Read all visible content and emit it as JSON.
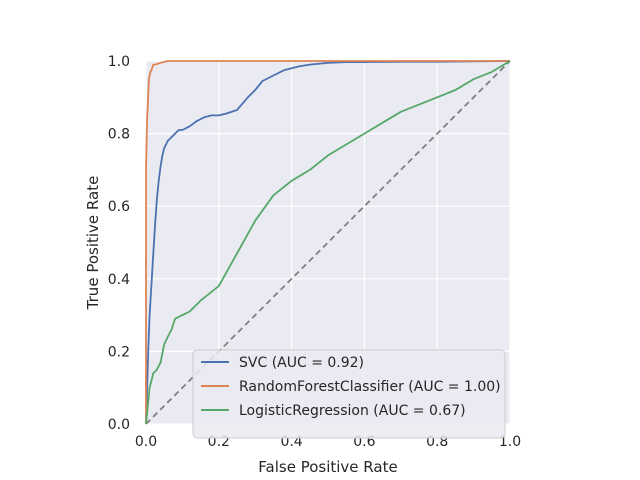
{
  "chart_data": {
    "type": "line",
    "title": "",
    "xlabel": "False Positive Rate",
    "ylabel": "True Positive Rate",
    "xlim": [
      0.0,
      1.0
    ],
    "ylim": [
      0.0,
      1.0
    ],
    "xticks": [
      "0.0",
      "0.2",
      "0.4",
      "0.6",
      "0.8",
      "1.0"
    ],
    "yticks": [
      "0.0",
      "0.2",
      "0.4",
      "0.6",
      "0.8",
      "1.0"
    ],
    "grid": true,
    "legend_position": "lower-right",
    "background_color": "#eaeaf2",
    "series": [
      {
        "name": "SVC (AUC = 0.92)",
        "color": "#4c72b0",
        "x": [
          0.0,
          0.003,
          0.006,
          0.008,
          0.01,
          0.013,
          0.016,
          0.02,
          0.025,
          0.03,
          0.035,
          0.04,
          0.045,
          0.05,
          0.06,
          0.07,
          0.08,
          0.09,
          0.1,
          0.12,
          0.14,
          0.16,
          0.18,
          0.2,
          0.22,
          0.25,
          0.28,
          0.3,
          0.32,
          0.35,
          0.38,
          0.4,
          0.42,
          0.45,
          0.5,
          0.55,
          0.6,
          0.7,
          0.8,
          0.9,
          1.0
        ],
        "y": [
          0.0,
          0.1,
          0.2,
          0.25,
          0.3,
          0.35,
          0.4,
          0.47,
          0.55,
          0.62,
          0.67,
          0.71,
          0.74,
          0.76,
          0.78,
          0.79,
          0.8,
          0.81,
          0.81,
          0.82,
          0.835,
          0.845,
          0.85,
          0.85,
          0.855,
          0.865,
          0.9,
          0.92,
          0.945,
          0.96,
          0.975,
          0.98,
          0.985,
          0.99,
          0.995,
          0.997,
          0.997,
          0.998,
          0.998,
          0.999,
          1.0
        ]
      },
      {
        "name": "RandomForestClassifier (AUC = 1.00)",
        "color": "#dd8452",
        "x": [
          0.0,
          0.0,
          0.003,
          0.005,
          0.008,
          0.012,
          0.015,
          0.02,
          0.025,
          0.04,
          0.06,
          0.2,
          1.0
        ],
        "y": [
          0.0,
          0.7,
          0.84,
          0.88,
          0.95,
          0.97,
          0.975,
          0.99,
          0.99,
          0.995,
          1.0,
          1.0,
          1.0
        ]
      },
      {
        "name": "LogisticRegression (AUC = 0.67)",
        "color": "#55a868",
        "x": [
          0.0,
          0.005,
          0.01,
          0.015,
          0.02,
          0.03,
          0.04,
          0.05,
          0.06,
          0.07,
          0.08,
          0.1,
          0.12,
          0.15,
          0.2,
          0.25,
          0.3,
          0.35,
          0.4,
          0.45,
          0.5,
          0.55,
          0.6,
          0.65,
          0.7,
          0.75,
          0.8,
          0.85,
          0.9,
          0.95,
          1.0
        ],
        "y": [
          0.0,
          0.05,
          0.1,
          0.12,
          0.14,
          0.15,
          0.17,
          0.22,
          0.24,
          0.26,
          0.29,
          0.3,
          0.31,
          0.34,
          0.38,
          0.47,
          0.56,
          0.63,
          0.67,
          0.7,
          0.74,
          0.77,
          0.8,
          0.83,
          0.86,
          0.88,
          0.9,
          0.92,
          0.95,
          0.97,
          1.0
        ]
      }
    ],
    "reference_line": {
      "x": [
        0.0,
        1.0
      ],
      "y": [
        0.0,
        1.0
      ],
      "color": "#808080",
      "style": "dashed"
    }
  }
}
